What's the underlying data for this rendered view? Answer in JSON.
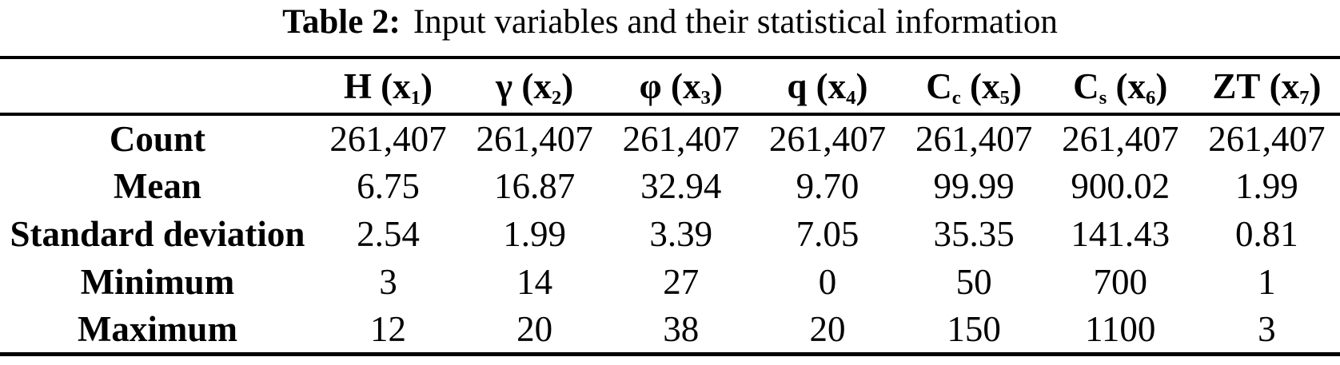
{
  "page": {
    "background_color": "#ffffff",
    "text_color": "#000000"
  },
  "caption": {
    "label": "Table 2:",
    "text": "Input variables and their statistical information"
  },
  "table": {
    "columns": [
      {
        "name": "H",
        "name_sub": "",
        "arg_open": "(x",
        "arg_sub": "1",
        "arg_close": ")"
      },
      {
        "name": "γ",
        "name_sub": "",
        "arg_open": "(x",
        "arg_sub": "2",
        "arg_close": ")"
      },
      {
        "name": "φ",
        "name_sub": "",
        "arg_open": "(x",
        "arg_sub": "3",
        "arg_close": ")"
      },
      {
        "name": "q",
        "name_sub": "",
        "arg_open": "(x",
        "arg_sub": "4",
        "arg_close": ")"
      },
      {
        "name": "C",
        "name_sub": "c",
        "arg_open": "(x",
        "arg_sub": "5",
        "arg_close": ")"
      },
      {
        "name": "C",
        "name_sub": "s",
        "arg_open": "(x",
        "arg_sub": "6",
        "arg_close": ")"
      },
      {
        "name": "ZT",
        "name_sub": "",
        "arg_open": "(x",
        "arg_sub": "7",
        "arg_close": ")"
      }
    ],
    "rows": [
      {
        "label": "Count",
        "values": [
          "261,407",
          "261,407",
          "261,407",
          "261,407",
          "261,407",
          "261,407",
          "261,407"
        ]
      },
      {
        "label": "Mean",
        "values": [
          "6.75",
          "16.87",
          "32.94",
          "9.70",
          "99.99",
          "900.02",
          "1.99"
        ]
      },
      {
        "label": "Standard deviation",
        "values": [
          "2.54",
          "1.99",
          "3.39",
          "7.05",
          "35.35",
          "141.43",
          "0.81"
        ]
      },
      {
        "label": "Minimum",
        "values": [
          "3",
          "14",
          "27",
          "0",
          "50",
          "700",
          "1"
        ]
      },
      {
        "label": "Maximum",
        "values": [
          "12",
          "20",
          "38",
          "20",
          "150",
          "1100",
          "3"
        ]
      }
    ]
  }
}
